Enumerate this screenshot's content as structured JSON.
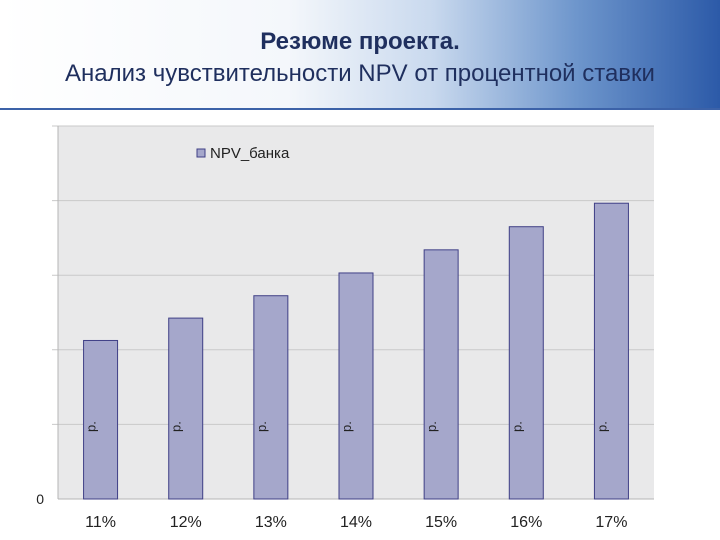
{
  "title": {
    "line1": "Резюме проекта.",
    "line2": "Анализ чувствительности NPV от процентной ставки"
  },
  "colors": {
    "bar_fill": "#a5a7cb",
    "bar_stroke": "#3f3f86",
    "plot_background": "#e9e9ea",
    "grid": "#c9c9c9",
    "header_gradient_end": "#2c5aa8"
  },
  "chart_data": {
    "type": "bar",
    "categories": [
      "11%",
      "12%",
      "13%",
      "14%",
      "15%",
      "16%",
      "17%"
    ],
    "series": [
      {
        "name": "NPV_банка",
        "values": [
          42.5,
          48.5,
          54.5,
          60.6,
          66.8,
          73.0,
          79.3
        ],
        "data_labels": [
          "р.",
          "р.",
          "р.",
          "р.",
          "р.",
          "р.",
          "р."
        ]
      }
    ],
    "y_tick_labels": [
      "0"
    ],
    "ylim": [
      0,
      100
    ],
    "grid": true,
    "legend": "top-left"
  }
}
